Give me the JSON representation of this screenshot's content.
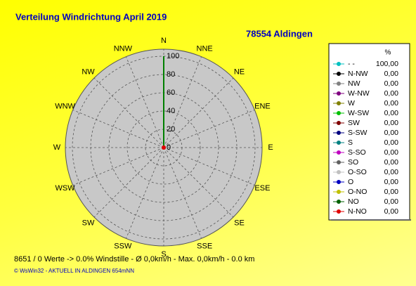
{
  "chart_data": {
    "type": "windrose",
    "title": "Verteilung Windrichtung   April 2019",
    "subtitle": "78554 Aldingen",
    "directions": [
      "N",
      "NNE",
      "NE",
      "ENE",
      "E",
      "ESE",
      "SE",
      "SSE",
      "S",
      "SSW",
      "SW",
      "WSW",
      "W",
      "WNW",
      "NW",
      "NNW"
    ],
    "rlim": [
      0,
      100
    ],
    "rticks": [
      0,
      20,
      40,
      60,
      80,
      100
    ],
    "legend_header": "%",
    "line_color": "#008000",
    "center_color": "#e00000",
    "series": [
      {
        "name": "- -",
        "color": "#00c0c0",
        "value": 100,
        "value_label": "100,00"
      },
      {
        "name": "N-NW",
        "color": "#000000",
        "value": 0,
        "value_label": "0,00"
      },
      {
        "name": "NW",
        "color": "#808080",
        "value": 0,
        "value_label": "0,00"
      },
      {
        "name": "W-NW",
        "color": "#800080",
        "value": 0,
        "value_label": "0,00"
      },
      {
        "name": "W",
        "color": "#808000",
        "value": 0,
        "value_label": "0,00"
      },
      {
        "name": "W-SW",
        "color": "#00c000",
        "value": 0,
        "value_label": "0,00"
      },
      {
        "name": "SW",
        "color": "#800000",
        "value": 0,
        "value_label": "0,00"
      },
      {
        "name": "S-SW",
        "color": "#000080",
        "value": 0,
        "value_label": "0,00"
      },
      {
        "name": "S",
        "color": "#008080",
        "value": 0,
        "value_label": "0,00"
      },
      {
        "name": "S-SO",
        "color": "#c000c0",
        "value": 0,
        "value_label": "0,00"
      },
      {
        "name": "SO",
        "color": "#606060",
        "value": 0,
        "value_label": "0,00"
      },
      {
        "name": "O-SO",
        "color": "#c0c0c0",
        "value": 0,
        "value_label": "0,00"
      },
      {
        "name": "O",
        "color": "#0000c0",
        "value": 0,
        "value_label": "0,00"
      },
      {
        "name": "O-NO",
        "color": "#c0c000",
        "value": 0,
        "value_label": "0,00"
      },
      {
        "name": "NO",
        "color": "#006000",
        "value": 0,
        "value_label": "0,00"
      },
      {
        "name": "N-NO",
        "color": "#e00000",
        "value": 0,
        "value_label": "0,00"
      }
    ],
    "footer": "8651 / 0 Werte  -> 0.0% Windstille   -   Ø 0,0km/h  -  Max. 0,0km/h   -    0.0 km",
    "credit": "© WsWin32  -  AKTUELL IN ALDINGEN 654mNN"
  }
}
